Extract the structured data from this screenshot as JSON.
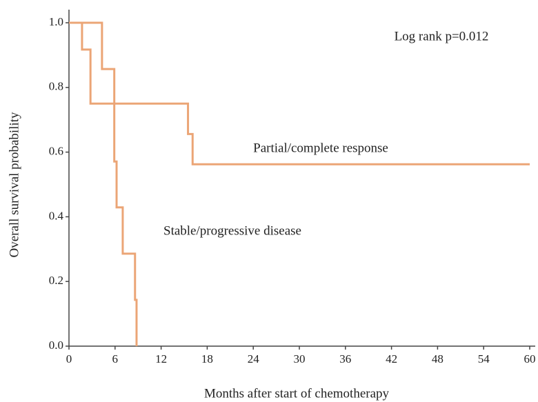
{
  "chart_data": {
    "type": "step",
    "xlabel": "Months after start of chemotherapy",
    "ylabel": "Overall survival probability",
    "annotations": [
      "Log rank p=0.012",
      "Partial/complete response",
      "Stable/progressive disease"
    ],
    "xlim": [
      0,
      60
    ],
    "xticks": [
      0,
      6,
      12,
      18,
      24,
      30,
      36,
      42,
      48,
      54,
      60
    ],
    "ylim": [
      0,
      1
    ],
    "yticks": [
      {
        "value": 0,
        "label": "0.0"
      },
      0.2,
      0.4,
      0.6,
      0.8,
      {
        "value": 1,
        "label": "1.0"
      }
    ],
    "series": [
      {
        "name": "Partial/complete response",
        "color": "#eba576",
        "x": [
          0,
          1.7,
          1.7,
          2.8,
          2.8,
          15.5,
          15.5,
          16.1,
          16.1,
          60
        ],
        "values": [
          1,
          1,
          0.917,
          0.917,
          0.75,
          0.75,
          0.656,
          0.656,
          0.5625,
          0.5625
        ]
      },
      {
        "name": "Stable/progressive disease",
        "color": "#eba576",
        "x": [
          0,
          4.3,
          4.3,
          5.9,
          5.9,
          6.2,
          6.2,
          7.0,
          7.0,
          8.6,
          8.6,
          8.8,
          8.8
        ],
        "values": [
          1,
          1,
          0.857,
          0.857,
          0.571,
          0.571,
          0.429,
          0.429,
          0.286,
          0.286,
          0.143,
          0.143,
          0
        ]
      }
    ]
  }
}
